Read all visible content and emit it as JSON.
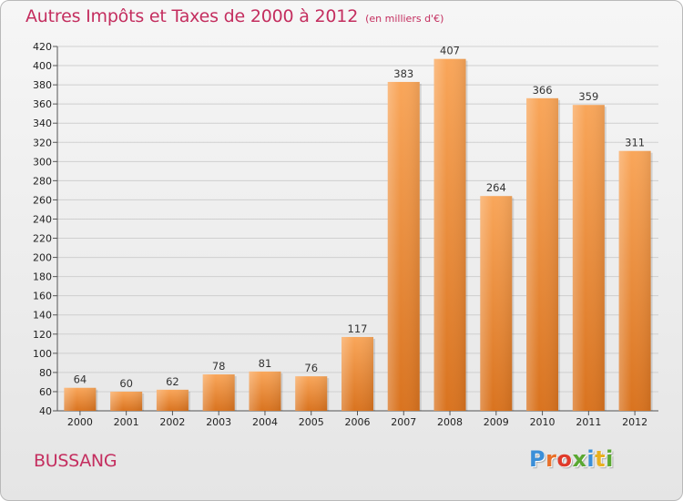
{
  "chart_data": {
    "type": "bar",
    "title": "Autres Impôts et Taxes de 2000 à 2012",
    "unit_note": "(en milliers d'€)",
    "categories": [
      "2000",
      "2001",
      "2002",
      "2003",
      "2004",
      "2005",
      "2006",
      "2007",
      "2008",
      "2009",
      "2010",
      "2011",
      "2012"
    ],
    "values": [
      64,
      60,
      62,
      78,
      81,
      76,
      117,
      383,
      407,
      264,
      366,
      359,
      311
    ],
    "ylim": [
      40,
      420
    ],
    "yticks": [
      40,
      60,
      80,
      100,
      120,
      140,
      160,
      180,
      200,
      220,
      240,
      260,
      280,
      300,
      320,
      340,
      360,
      380,
      400,
      420
    ],
    "grid": true,
    "legend": "none",
    "bar_color": "#f0903a",
    "title_color": "#c42e5f"
  },
  "footer": {
    "commune": "BUSSANG",
    "brand": "Proxiti"
  },
  "brand_letter_colors": [
    "#3b8fd8",
    "#e8702a",
    "#e03a2a",
    "#5aa832",
    "#3b8fd8",
    "#e8b020",
    "#5aa832"
  ]
}
